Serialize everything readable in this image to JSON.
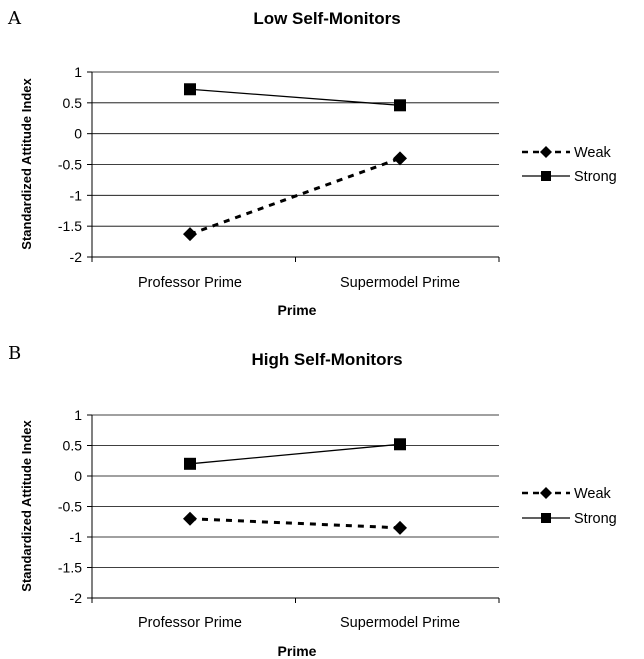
{
  "chart_data": [
    {
      "panel": "A",
      "type": "line",
      "title": "Low Self-Monitors",
      "xlabel": "Prime",
      "ylabel": "Standardized Attitude Index",
      "categories": [
        "Professor Prime",
        "Supermodel Prime"
      ],
      "ylim": [
        -2,
        1
      ],
      "yticks": [
        "1",
        "0.5",
        "0",
        "-0.5",
        "-1",
        "-1.5",
        "-2"
      ],
      "grid": true,
      "legend_position": "right",
      "series": [
        {
          "name": "Weak",
          "values": [
            -1.63,
            -0.4
          ],
          "line_style": "dashed",
          "marker": "diamond",
          "color": "#000000"
        },
        {
          "name": "Strong",
          "values": [
            0.72,
            0.46
          ],
          "line_style": "solid",
          "marker": "square",
          "color": "#000000"
        }
      ]
    },
    {
      "panel": "B",
      "type": "line",
      "title": "High Self-Monitors",
      "xlabel": "Prime",
      "ylabel": "Standardized Attitude Index",
      "categories": [
        "Professor Prime",
        "Supermodel Prime"
      ],
      "ylim": [
        -2,
        1
      ],
      "yticks": [
        "1",
        "0.5",
        "0",
        "-0.5",
        "-1",
        "-1.5",
        "-2"
      ],
      "grid": true,
      "legend_position": "right",
      "series": [
        {
          "name": "Weak",
          "values": [
            -0.7,
            -0.85
          ],
          "line_style": "dashed",
          "marker": "diamond",
          "color": "#000000"
        },
        {
          "name": "Strong",
          "values": [
            0.2,
            0.52
          ],
          "line_style": "solid",
          "marker": "square",
          "color": "#000000"
        }
      ]
    }
  ]
}
